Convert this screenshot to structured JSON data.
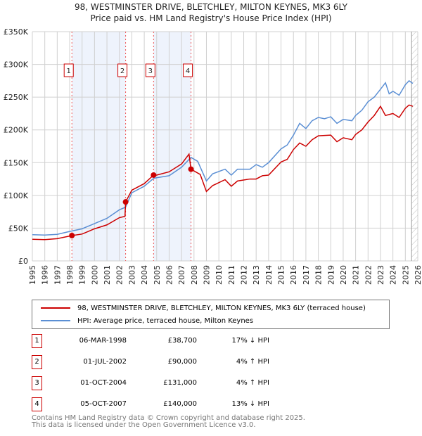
{
  "chart_data": {
    "type": "line",
    "title": "98, WESTMINSTER DRIVE, BLETCHLEY, MILTON KEYNES, MK3 6LY",
    "subtitle": "Price paid vs. HM Land Registry's House Price Index (HPI)",
    "xlim": [
      1995,
      2026
    ],
    "ylim": [
      0,
      350000
    ],
    "y_ticks": [
      {
        "v": 0,
        "label": "£0"
      },
      {
        "v": 50000,
        "label": "£50K"
      },
      {
        "v": 100000,
        "label": "£100K"
      },
      {
        "v": 150000,
        "label": "£150K"
      },
      {
        "v": 200000,
        "label": "£200K"
      },
      {
        "v": 250000,
        "label": "£250K"
      },
      {
        "v": 300000,
        "label": "£300K"
      },
      {
        "v": 350000,
        "label": "£350K"
      }
    ],
    "x_ticks": [
      "1995",
      "1996",
      "1997",
      "1998",
      "1999",
      "2000",
      "2001",
      "2002",
      "2003",
      "2004",
      "2005",
      "2006",
      "2007",
      "2008",
      "2009",
      "2010",
      "2011",
      "2012",
      "2013",
      "2014",
      "2015",
      "2016",
      "2017",
      "2018",
      "2019",
      "2020",
      "2021",
      "2022",
      "2023",
      "2024",
      "2025",
      "2026"
    ],
    "grid": true,
    "shaded_ranges": [
      [
        1998.18,
        2002.5
      ],
      [
        2004.75,
        2007.76
      ]
    ],
    "forecast_from": 2025.5,
    "series": [
      {
        "name": "98, WESTMINSTER DRIVE, BLETCHLEY, MILTON KEYNES, MK3 6LY (terraced house)",
        "color": "#cc0000",
        "x": [
          1995,
          1996,
          1997,
          1998.18,
          1999,
          2000,
          2001,
          2002,
          2002.45,
          2002.5,
          2003,
          2004,
          2004.75,
          2005,
          2006,
          2007,
          2007.6,
          2007.76,
          2008.5,
          2009,
          2009.5,
          2010.5,
          2011,
          2011.5,
          2012.5,
          2013,
          2013.5,
          2014,
          2015,
          2015.5,
          2016,
          2016.5,
          2017,
          2017.5,
          2018,
          2019,
          2019.5,
          2020,
          2020.7,
          2021,
          2021.5,
          2022,
          2022.5,
          2023,
          2023.4,
          2024,
          2024.5,
          2025,
          2025.3,
          2025.6
        ],
        "y": [
          33000,
          32500,
          34000,
          38700,
          41000,
          49000,
          55000,
          66000,
          68000,
          90000,
          108000,
          118000,
          131000,
          131000,
          136000,
          148000,
          163000,
          140000,
          132000,
          106000,
          115000,
          124000,
          114000,
          122000,
          125000,
          125000,
          130000,
          131000,
          151000,
          155000,
          170000,
          180000,
          175000,
          185000,
          191000,
          192000,
          182000,
          188000,
          185000,
          193000,
          200000,
          212000,
          222000,
          236000,
          222000,
          225000,
          219000,
          233000,
          238000,
          236000
        ]
      },
      {
        "name": "HPI: Average price, terraced house, Milton Keynes",
        "color": "#5b8fd4",
        "x": [
          1995,
          1996,
          1997,
          1998,
          1999,
          2000,
          2001,
          2002,
          2002.5,
          2003,
          2004,
          2004.75,
          2005,
          2006,
          2007,
          2007.76,
          2008.3,
          2009,
          2009.5,
          2010.5,
          2011,
          2011.5,
          2012.5,
          2013,
          2013.5,
          2014,
          2015,
          2015.5,
          2016,
          2016.5,
          2017,
          2017.5,
          2018,
          2018.5,
          2019,
          2019.5,
          2020,
          2020.7,
          2021,
          2021.5,
          2022,
          2022.5,
          2023,
          2023.4,
          2023.7,
          2024,
          2024.5,
          2025,
          2025.3,
          2025.6
        ],
        "y": [
          40000,
          39500,
          40500,
          45000,
          49000,
          57000,
          65000,
          78000,
          82000,
          104000,
          114000,
          126000,
          127000,
          130000,
          143000,
          158000,
          152000,
          122000,
          133000,
          140000,
          131000,
          140000,
          140000,
          147000,
          143000,
          150000,
          171000,
          177000,
          192000,
          210000,
          202000,
          214000,
          219000,
          217000,
          220000,
          210000,
          216000,
          214000,
          222000,
          230000,
          243000,
          250000,
          262000,
          272000,
          255000,
          259000,
          253000,
          269000,
          275000,
          271000
        ]
      }
    ],
    "sales": [
      {
        "n": "1",
        "x": 1998.18,
        "y": 38700,
        "date": "06-MAR-1998",
        "price": "£38,700",
        "hpi": "17% ↓ HPI"
      },
      {
        "n": "2",
        "x": 2002.5,
        "y": 90000,
        "date": "01-JUL-2002",
        "price": "£90,000",
        "hpi": "4% ↑ HPI"
      },
      {
        "n": "3",
        "x": 2004.75,
        "y": 131000,
        "date": "01-OCT-2004",
        "price": "£131,000",
        "hpi": "4% ↑ HPI"
      },
      {
        "n": "4",
        "x": 2007.76,
        "y": 140000,
        "date": "05-OCT-2007",
        "price": "£140,000",
        "hpi": "13% ↓ HPI"
      }
    ]
  },
  "footer": {
    "line1": "Contains HM Land Registry data © Crown copyright and database right 2025.",
    "line2": "This data is licensed under the Open Government Licence v3.0."
  }
}
